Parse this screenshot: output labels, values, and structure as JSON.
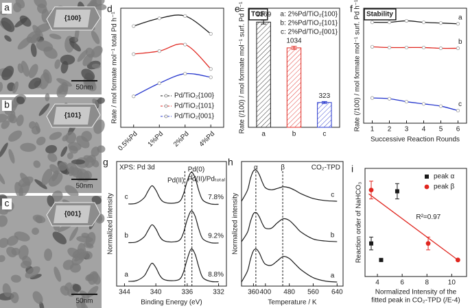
{
  "images": [
    {
      "label": "a",
      "facet": "{100}",
      "scale": "50nm"
    },
    {
      "label": "b",
      "facet": "{101}",
      "scale": "50nm"
    },
    {
      "label": "c",
      "facet": "{001}",
      "scale": "50nm"
    }
  ],
  "chart_data": [
    {
      "type": "line",
      "label": "d",
      "ylabel": "Rate / mol formate mol⁻¹ total Pd h⁻¹",
      "categories": [
        "0.5%Pd",
        "1%Pd",
        "2%Pd",
        "4%Pd"
      ],
      "series": [
        {
          "name": "Pd/TiO₂{100}",
          "color": "#1a1a1a",
          "values": [
            170,
            183,
            187,
            157
          ]
        },
        {
          "name": "Pd/TiO₂{101}",
          "color": "#e0261f",
          "values": [
            123,
            128,
            139,
            98
          ]
        },
        {
          "name": "Pd/TiO₂{001}",
          "color": "#2233cc",
          "values": [
            52,
            74,
            90,
            84
          ]
        }
      ],
      "ylim": [
        0,
        200
      ],
      "legend": "lower right"
    },
    {
      "type": "bar",
      "label": "e",
      "title": "TOF",
      "ylabel": "Rate (/100) / mol formate mol⁻¹ surf. Pd h⁻¹",
      "categories": [
        "a",
        "b",
        "c"
      ],
      "values": [
        1369,
        1034,
        323
      ],
      "errors": [
        25,
        20,
        12
      ],
      "colors": [
        "#1a1a1a",
        "#e0261f",
        "#2233cc"
      ],
      "legend": [
        "a: 2%Pd/TiO₂{100}",
        "b: 2%Pd/TiO₂{101}",
        "c: 2%Pd/TiO₂{001}"
      ],
      "ylim": [
        0,
        1550
      ]
    },
    {
      "type": "line",
      "label": "f",
      "title": "Stability",
      "ylabel": "Rate (/100) / mol formate mol⁻¹ surf. Pd h⁻¹",
      "xlabel": "Successive Reaction Rounds",
      "x": [
        1,
        2,
        3,
        4,
        5,
        6
      ],
      "xlim": [
        0.5,
        6.5
      ],
      "xticks": [
        1,
        2,
        3,
        4,
        5,
        6
      ],
      "series": [
        {
          "name": "a",
          "color": "#1a1a1a",
          "values": [
            13.6,
            13.6,
            13.8,
            13.6,
            13.5,
            13.4
          ]
        },
        {
          "name": "b",
          "color": "#e0261f",
          "values": [
            10.3,
            10.2,
            10.2,
            10.2,
            10.1,
            10.1
          ]
        },
        {
          "name": "c",
          "color": "#2233cc",
          "values": [
            3.4,
            3.3,
            2.9,
            2.6,
            2.3,
            1.7
          ]
        }
      ],
      "ylim": [
        0,
        15.5
      ]
    },
    {
      "type": "spectrum",
      "label": "g",
      "title": "XPS: Pd 3d",
      "ylabel": "Normalized intensity",
      "xlabel": "Binding Energy (eV)",
      "x": [
        343.5,
        342.5,
        341.5,
        341,
        340.5,
        340,
        339.5,
        339,
        338,
        337,
        336.5,
        336,
        335.5,
        335,
        334.5,
        334,
        333,
        332
      ],
      "xlim": [
        345,
        331
      ],
      "xticks": [
        344,
        340,
        336,
        332
      ],
      "ylim": [
        -0.1,
        3.6
      ],
      "vlines": [
        {
          "x": 336.3,
          "label": "Pd(II)"
        },
        {
          "x": 335.4,
          "label": "Pd(0)"
        }
      ],
      "ratio_title": "Pd(II)/Pdₜₒₜₐₗ",
      "series": [
        {
          "name": "a",
          "color": "#1a1a1a",
          "ratio": "8.8%",
          "values": [
            0.04,
            0.06,
            0.2,
            0.4,
            0.58,
            0.45,
            0.22,
            0.1,
            0.06,
            0.1,
            0.3,
            0.7,
            1.0,
            0.85,
            0.45,
            0.15,
            0.04,
            0.03
          ]
        },
        {
          "name": "b",
          "color": "#1a1a1a",
          "ratio": "9.2%",
          "values": [
            1.19,
            1.21,
            1.36,
            1.55,
            1.72,
            1.6,
            1.37,
            1.25,
            1.21,
            1.26,
            1.47,
            1.87,
            2.13,
            1.98,
            1.58,
            1.3,
            1.19,
            1.18
          ]
        },
        {
          "name": "c",
          "color": "#1a1a1a",
          "ratio": "7.8%",
          "values": [
            2.34,
            2.36,
            2.52,
            2.72,
            2.88,
            2.75,
            2.52,
            2.4,
            2.36,
            2.41,
            2.62,
            3.02,
            3.28,
            3.12,
            2.72,
            2.45,
            2.34,
            2.33
          ]
        }
      ]
    },
    {
      "type": "spectrum",
      "label": "h",
      "title": "CO₂-TPD",
      "ylabel": "Normalized intensity",
      "xlabel": "Temperature / K",
      "x": [
        320,
        340,
        350,
        360,
        370,
        380,
        390,
        400,
        420,
        440,
        460,
        480,
        500,
        520,
        560,
        600,
        640
      ],
      "xlim": [
        320,
        660
      ],
      "xticks": [
        360,
        400,
        480,
        560,
        640
      ],
      "ylim": [
        -0.1,
        3.6
      ],
      "vlines": [
        {
          "x": 368,
          "label": "α"
        },
        {
          "x": 458,
          "label": "β"
        }
      ],
      "series": [
        {
          "name": "a",
          "color": "#1a1a1a",
          "values": [
            0.02,
            0.35,
            0.7,
            0.95,
            1.0,
            0.88,
            0.68,
            0.55,
            0.52,
            0.65,
            0.78,
            0.72,
            0.55,
            0.38,
            0.15,
            0.05,
            0.02
          ]
        },
        {
          "name": "b",
          "color": "#1a1a1a",
          "values": [
            1.22,
            1.5,
            1.82,
            2.05,
            2.08,
            1.95,
            1.75,
            1.62,
            1.62,
            1.78,
            1.9,
            1.85,
            1.68,
            1.5,
            1.3,
            1.24,
            1.22
          ]
        },
        {
          "name": "c",
          "color": "#1a1a1a",
          "values": [
            2.42,
            2.75,
            3.1,
            3.32,
            3.34,
            3.2,
            2.98,
            2.82,
            2.76,
            2.8,
            2.85,
            2.82,
            2.74,
            2.64,
            2.5,
            2.44,
            2.42
          ]
        }
      ]
    },
    {
      "type": "scatter",
      "label": "i",
      "ylabel": "Reaction order of NaHCO₃",
      "xlabel": [
        "Normalized Intensity of the",
        "fitted peak in CO₂-TPD (/E-4)"
      ],
      "xlim": [
        3,
        11.2
      ],
      "xticks": [
        4,
        6,
        8,
        10
      ],
      "ylim": [
        0.3,
        1.15
      ],
      "series": [
        {
          "name": "peak α",
          "color": "#1a1a1a",
          "marker": "square",
          "x": [
            3.5,
            4.3,
            5.6
          ],
          "values": [
            0.56,
            0.43,
            0.97
          ],
          "errors": [
            0.05,
            0,
            0.06
          ]
        },
        {
          "name": "peak β",
          "color": "#e0261f",
          "marker": "circle",
          "x": [
            3.5,
            8.1,
            10.5
          ],
          "values": [
            0.98,
            0.56,
            0.43
          ],
          "errors": [
            0.07,
            0.05,
            0
          ]
        }
      ],
      "fit": {
        "x": [
          3.3,
          10.5
        ],
        "y": [
          0.95,
          0.43
        ],
        "color": "#e0261f"
      },
      "annotation": "R²=0.97",
      "legend": "upper right"
    }
  ]
}
